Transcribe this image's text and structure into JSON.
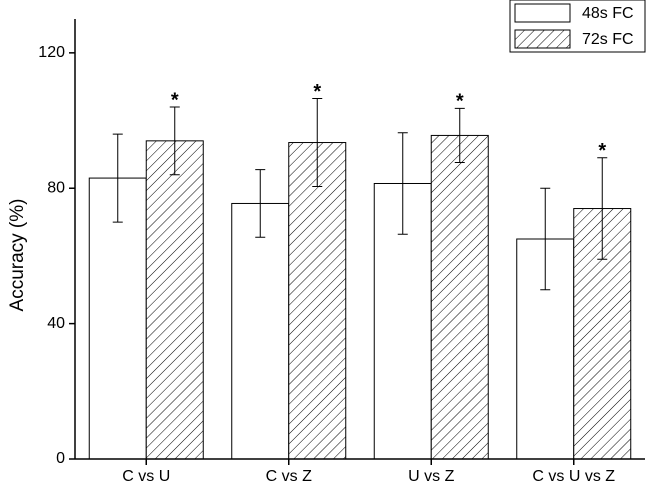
{
  "chart_data": {
    "type": "bar",
    "y_label": "Accuracy (%)",
    "categories": [
      "C vs U",
      "C vs Z",
      "U vs Z",
      "C vs U vs Z"
    ],
    "series": [
      {
        "name": "48s FC",
        "color": "#ffffff",
        "hatch": false,
        "values": [
          83,
          75.5,
          81.4,
          65
        ],
        "errors": [
          13,
          10,
          15,
          15
        ]
      },
      {
        "name": "72s FC",
        "color": "#ffffff",
        "hatch": true,
        "values": [
          94,
          93.5,
          95.6,
          74
        ],
        "errors": [
          10,
          13,
          8,
          15
        ]
      }
    ],
    "annotations": [
      "*",
      "*",
      "*",
      "*"
    ],
    "ylim": [
      0,
      130
    ],
    "yticks": [
      0,
      40,
      80,
      120
    ],
    "legend": "upper right"
  }
}
